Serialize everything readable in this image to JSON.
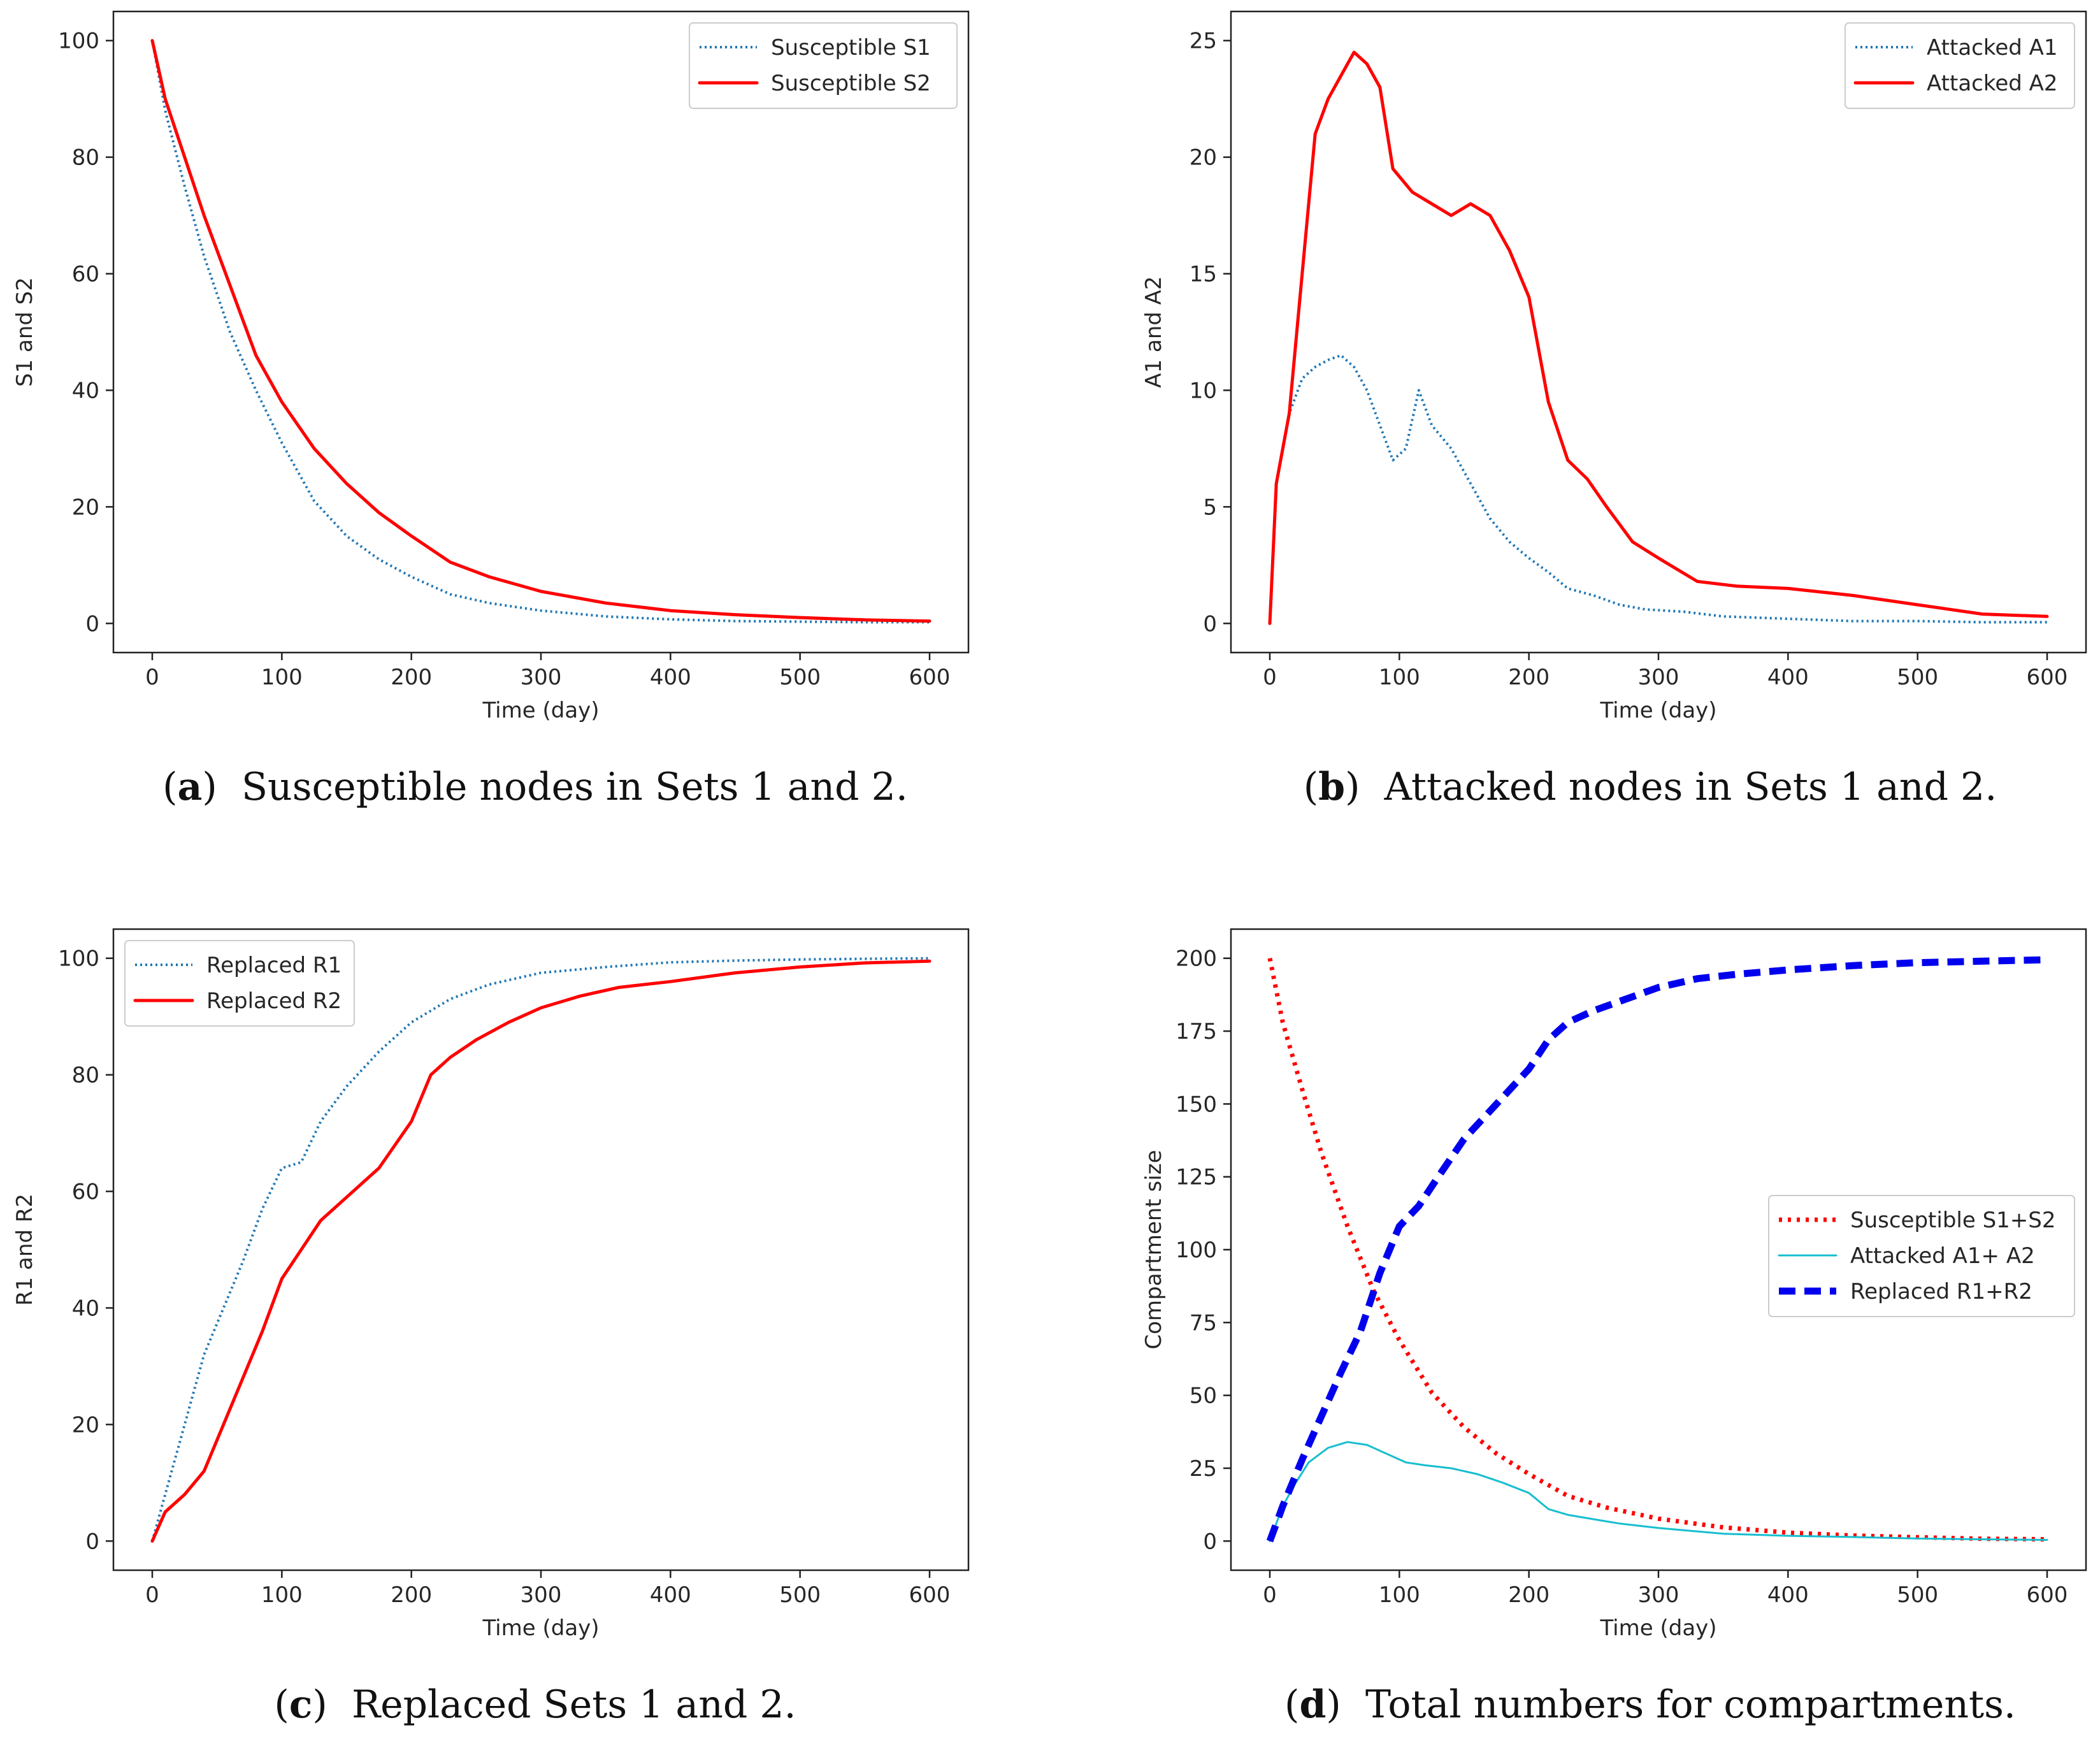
{
  "chart_data": [
    {
      "type": "line",
      "caption_letter": "a",
      "caption_text": "Susceptible nodes in Sets 1 and 2.",
      "xlabel": "Time (day)",
      "ylabel": "S1 and S2",
      "xlim": [
        -30,
        630
      ],
      "ylim": [
        -5,
        105
      ],
      "xticks": [
        "0",
        "100",
        "200",
        "300",
        "400",
        "500",
        "600"
      ],
      "yticks": [
        "0",
        "20",
        "40",
        "60",
        "80",
        "100"
      ],
      "legend_position": "top-right",
      "series": [
        {
          "name": "Susceptible S1",
          "color": "#1f77b4",
          "style": "dotted",
          "x": [
            0,
            10,
            25,
            40,
            60,
            80,
            100,
            125,
            150,
            175,
            200,
            230,
            260,
            300,
            350,
            400,
            450,
            500,
            550,
            600
          ],
          "y": [
            100,
            88,
            75,
            63,
            50,
            40,
            31,
            21,
            15,
            11,
            8,
            5,
            3.5,
            2.2,
            1.2,
            0.7,
            0.4,
            0.3,
            0.2,
            0.2
          ]
        },
        {
          "name": "Susceptible S2",
          "color": "#ff0000",
          "style": "solid",
          "x": [
            0,
            10,
            25,
            40,
            60,
            80,
            100,
            125,
            150,
            175,
            200,
            230,
            260,
            300,
            350,
            400,
            450,
            500,
            550,
            600
          ],
          "y": [
            100,
            90,
            80,
            70,
            58,
            46,
            38,
            30,
            24,
            19,
            15,
            10.5,
            8,
            5.5,
            3.5,
            2.2,
            1.5,
            1,
            0.6,
            0.4
          ]
        }
      ]
    },
    {
      "type": "line",
      "caption_letter": "b",
      "caption_text": "Attacked nodes in Sets 1 and 2.",
      "xlabel": "Time (day)",
      "ylabel": "A1 and A2",
      "xlim": [
        -30,
        630
      ],
      "ylim": [
        -1.25,
        26.25
      ],
      "xticks": [
        "0",
        "100",
        "200",
        "300",
        "400",
        "500",
        "600"
      ],
      "yticks": [
        "0",
        "5",
        "10",
        "15",
        "20",
        "25"
      ],
      "legend_position": "top-right",
      "series": [
        {
          "name": "Attacked A1",
          "color": "#1f77b4",
          "style": "dotted",
          "x": [
            0,
            5,
            15,
            25,
            35,
            45,
            55,
            65,
            75,
            85,
            95,
            105,
            115,
            125,
            140,
            155,
            170,
            185,
            200,
            215,
            230,
            250,
            270,
            290,
            320,
            350,
            400,
            450,
            500,
            550,
            600
          ],
          "y": [
            0,
            6,
            9,
            10.5,
            11,
            11.3,
            11.5,
            11,
            10,
            8.5,
            7,
            7.5,
            10,
            8.5,
            7.5,
            6,
            4.5,
            3.5,
            2.8,
            2.2,
            1.5,
            1.2,
            0.8,
            0.6,
            0.5,
            0.3,
            0.2,
            0.1,
            0.1,
            0.05,
            0.05
          ]
        },
        {
          "name": "Attacked A2",
          "color": "#ff0000",
          "style": "solid",
          "x": [
            0,
            5,
            15,
            25,
            35,
            45,
            55,
            65,
            75,
            85,
            95,
            110,
            125,
            140,
            155,
            170,
            185,
            200,
            215,
            230,
            245,
            260,
            280,
            300,
            330,
            360,
            400,
            450,
            500,
            550,
            600
          ],
          "y": [
            0,
            6,
            9,
            15,
            21,
            22.5,
            23.5,
            24.5,
            24,
            23,
            19.5,
            18.5,
            18,
            17.5,
            18,
            17.5,
            16,
            14,
            9.5,
            7,
            6.2,
            5,
            3.5,
            2.8,
            1.8,
            1.6,
            1.5,
            1.2,
            0.8,
            0.4,
            0.3
          ]
        }
      ]
    },
    {
      "type": "line",
      "caption_letter": "c",
      "caption_text": "Replaced Sets 1 and 2.",
      "xlabel": "Time (day)",
      "ylabel": "R1 and R2",
      "xlim": [
        -30,
        630
      ],
      "ylim": [
        -5,
        105
      ],
      "xticks": [
        "0",
        "100",
        "200",
        "300",
        "400",
        "500",
        "600"
      ],
      "yticks": [
        "0",
        "20",
        "40",
        "60",
        "80",
        "100"
      ],
      "legend_position": "top-left",
      "series": [
        {
          "name": "Replaced R1",
          "color": "#1f77b4",
          "style": "dotted",
          "x": [
            0,
            10,
            25,
            40,
            55,
            70,
            85,
            100,
            115,
            130,
            150,
            175,
            200,
            230,
            260,
            300,
            350,
            400,
            450,
            500,
            550,
            600
          ],
          "y": [
            0,
            8,
            20,
            32,
            40,
            48,
            57,
            64,
            65,
            72,
            78,
            84,
            89,
            93,
            95.5,
            97.5,
            98.5,
            99.3,
            99.6,
            99.8,
            99.9,
            100
          ]
        },
        {
          "name": "Replaced R2",
          "color": "#ff0000",
          "style": "solid",
          "x": [
            0,
            10,
            25,
            40,
            55,
            70,
            85,
            100,
            115,
            130,
            150,
            175,
            200,
            215,
            230,
            250,
            275,
            300,
            330,
            360,
            400,
            450,
            500,
            550,
            600
          ],
          "y": [
            0,
            5,
            8,
            12,
            20,
            28,
            36,
            45,
            50,
            55,
            59,
            64,
            72,
            80,
            83,
            86,
            89,
            91.5,
            93.5,
            95,
            96,
            97.5,
            98.5,
            99.2,
            99.5
          ]
        }
      ]
    },
    {
      "type": "line",
      "caption_letter": "d",
      "caption_text": "Total numbers for compartments.",
      "xlabel": "Time (day)",
      "ylabel": "Compartment size",
      "xlim": [
        -30,
        630
      ],
      "ylim": [
        -10,
        210
      ],
      "xticks": [
        "0",
        "100",
        "200",
        "300",
        "400",
        "500",
        "600"
      ],
      "yticks": [
        "0",
        "25",
        "50",
        "75",
        "100",
        "125",
        "150",
        "175",
        "200"
      ],
      "legend_position": "center-right",
      "series": [
        {
          "name": "Susceptible S1+S2",
          "color": "#ff0000",
          "style": "dotted-thick",
          "x": [
            0,
            10,
            25,
            40,
            60,
            80,
            100,
            125,
            150,
            175,
            200,
            230,
            260,
            300,
            350,
            400,
            450,
            500,
            550,
            600
          ],
          "y": [
            200,
            178,
            155,
            133,
            108,
            86,
            69,
            51,
            39,
            30,
            23,
            15.5,
            11.5,
            7.7,
            4.7,
            2.9,
            1.9,
            1.3,
            0.8,
            0.6
          ]
        },
        {
          "name": "Attacked A1+ A2",
          "color": "#17becf",
          "style": "solid-thin",
          "x": [
            0,
            10,
            20,
            30,
            45,
            60,
            75,
            90,
            105,
            120,
            140,
            160,
            180,
            200,
            215,
            230,
            250,
            270,
            300,
            350,
            400,
            450,
            500,
            550,
            600
          ],
          "y": [
            0,
            12,
            20,
            27,
            32,
            34,
            33,
            30,
            27,
            26,
            25,
            23,
            20,
            16.5,
            11,
            9,
            7.5,
            6,
            4.5,
            2.5,
            1.8,
            1.4,
            0.9,
            0.6,
            0.4
          ]
        },
        {
          "name": "Replaced R1+R2",
          "color": "#0000ee",
          "style": "dashed-thick",
          "x": [
            0,
            10,
            25,
            40,
            55,
            70,
            85,
            100,
            115,
            130,
            150,
            175,
            200,
            215,
            230,
            250,
            275,
            300,
            330,
            360,
            400,
            450,
            500,
            550,
            600
          ],
          "y": [
            0,
            12,
            28,
            43,
            58,
            72,
            92,
            108,
            115,
            125,
            138,
            150,
            162,
            172,
            178,
            182,
            186,
            190,
            193,
            194.5,
            196,
            197.5,
            198.5,
            199,
            199.5
          ]
        }
      ]
    }
  ]
}
